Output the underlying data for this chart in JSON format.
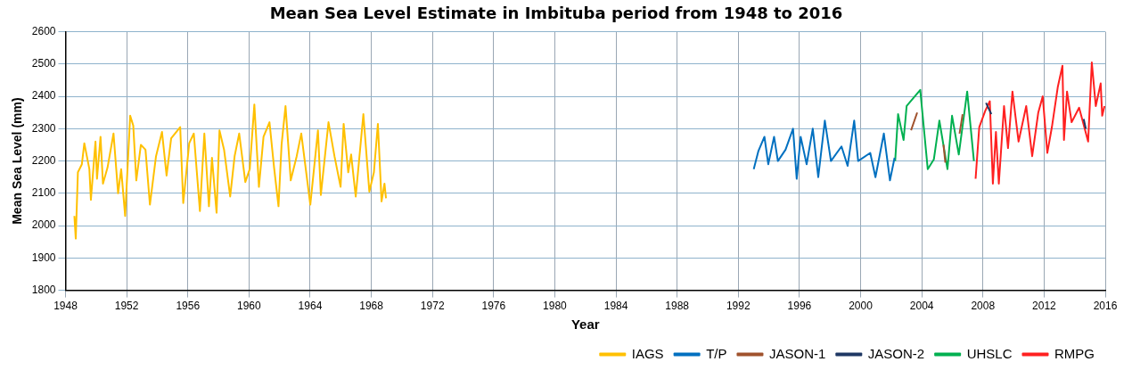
{
  "chart_data": {
    "type": "line",
    "title": "Mean Sea Level Estimate in Imbituba period from 1948 to 2016",
    "xlabel": "Year",
    "ylabel": "Mean Sea Level (mm)",
    "xlim": [
      1948,
      2016
    ],
    "xticks": [
      1948,
      1952,
      1956,
      1960,
      1964,
      1968,
      1972,
      1976,
      1980,
      1984,
      1988,
      1992,
      1996,
      2000,
      2004,
      2008,
      2012,
      2016
    ],
    "ylim": [
      1800,
      2600
    ],
    "yticks": [
      1800,
      1900,
      2000,
      2100,
      2200,
      2300,
      2400,
      2500,
      2600
    ],
    "grid": true,
    "legend": "bottom right",
    "marker": "none",
    "line_style": "solid",
    "series": [
      {
        "name": "IAGS",
        "color": "#ffc000",
        "x": [
          1948.58,
          1948.67,
          1948.81,
          1949.07,
          1949.23,
          1949.56,
          1949.66,
          1949.96,
          1950.06,
          1950.29,
          1950.45,
          1950.75,
          1951.14,
          1951.44,
          1951.64,
          1951.9,
          1952.23,
          1952.43,
          1952.63,
          1952.93,
          1953.23,
          1953.52,
          1953.92,
          1954.31,
          1954.61,
          1954.91,
          1955.5,
          1955.7,
          1956.09,
          1956.39,
          1956.79,
          1957.08,
          1957.38,
          1957.58,
          1957.88,
          1958.07,
          1958.37,
          1958.77,
          1959.06,
          1959.36,
          1959.76,
          1960.05,
          1960.35,
          1960.65,
          1960.95,
          1961.34,
          1961.64,
          1961.93,
          1962.13,
          1962.39,
          1962.73,
          1963.12,
          1963.42,
          1964.01,
          1964.51,
          1964.7,
          1965.2,
          1965.59,
          1965.99,
          1966.19,
          1966.49,
          1966.68,
          1966.98,
          1967.48,
          1967.87,
          1968.17,
          1968.43,
          1968.67,
          1968.86,
          1968.96
        ],
        "values": [
          2030,
          1960,
          2165,
          2190,
          2255,
          2175,
          2080,
          2260,
          2145,
          2275,
          2130,
          2180,
          2285,
          2100,
          2175,
          2030,
          2340,
          2310,
          2140,
          2250,
          2235,
          2065,
          2215,
          2290,
          2155,
          2270,
          2305,
          2070,
          2255,
          2285,
          2045,
          2285,
          2060,
          2210,
          2040,
          2295,
          2235,
          2090,
          2215,
          2285,
          2135,
          2175,
          2375,
          2120,
          2275,
          2320,
          2180,
          2060,
          2250,
          2370,
          2140,
          2215,
          2285,
          2065,
          2295,
          2095,
          2320,
          2215,
          2120,
          2315,
          2165,
          2220,
          2090,
          2345,
          2105,
          2165,
          2315,
          2075,
          2130,
          2085
        ]
      },
      {
        "name": "T/P",
        "color": "#0070c0",
        "x": [
          1993.01,
          1993.31,
          1993.71,
          1993.96,
          1994.34,
          1994.59,
          1995.09,
          1995.58,
          1995.82,
          1996.08,
          1996.47,
          1996.87,
          1997.23,
          1997.66,
          1998.06,
          1998.75,
          1999.15,
          1999.58,
          1999.84,
          2000.63,
          2000.97,
          2001.52,
          2001.92,
          2002.22
        ],
        "values": [
          2175,
          2230,
          2275,
          2190,
          2275,
          2200,
          2235,
          2300,
          2145,
          2275,
          2190,
          2300,
          2150,
          2325,
          2200,
          2245,
          2185,
          2325,
          2200,
          2225,
          2150,
          2285,
          2140,
          2210
        ]
      },
      {
        "name": "JASON-1",
        "color": "#a0522d",
        "x": [
          2003.3,
          2003.7,
          2003.71,
          2005.42,
          2005.54,
          2005.55,
          2006.47,
          2006.67
        ],
        "values": [
          2295,
          2350,
          null,
          2250,
          2195,
          null,
          2285,
          2345
        ]
      },
      {
        "name": "JASON-2",
        "color": "#1f3864",
        "x": [
          2008.2,
          2008.55,
          2008.56,
          2014.59,
          2014.73
        ],
        "values": [
          2380,
          2345,
          null,
          2330,
          2300
        ]
      },
      {
        "name": "UHSLC",
        "color": "#00b050",
        "x": [
          2002.26,
          2002.45,
          2002.81,
          2003.01,
          2003.9,
          2004.39,
          2004.79,
          2005.15,
          2005.68,
          2005.98,
          2006.42,
          2006.97,
          2007.41
        ],
        "values": [
          2200,
          2345,
          2265,
          2370,
          2420,
          2175,
          2205,
          2325,
          2175,
          2340,
          2220,
          2415,
          2200
        ]
      },
      {
        "name": "RMPG",
        "color": "#ff2020",
        "x": [
          2007.52,
          2007.76,
          2008.15,
          2008.45,
          2008.65,
          2008.85,
          2009.04,
          2009.38,
          2009.64,
          2009.93,
          2010.33,
          2010.83,
          2011.22,
          2011.62,
          2011.91,
          2012.21,
          2012.51,
          2012.9,
          2013.2,
          2013.3,
          2013.5,
          2013.8,
          2014.29,
          2014.88,
          2015.12,
          2015.38,
          2015.7,
          2015.8,
          2015.95
        ],
        "values": [
          2145,
          2305,
          2355,
          2385,
          2130,
          2290,
          2130,
          2370,
          2240,
          2415,
          2260,
          2370,
          2215,
          2350,
          2400,
          2225,
          2305,
          2430,
          2495,
          2265,
          2415,
          2320,
          2365,
          2260,
          2505,
          2370,
          2440,
          2340,
          2370
        ]
      }
    ]
  }
}
